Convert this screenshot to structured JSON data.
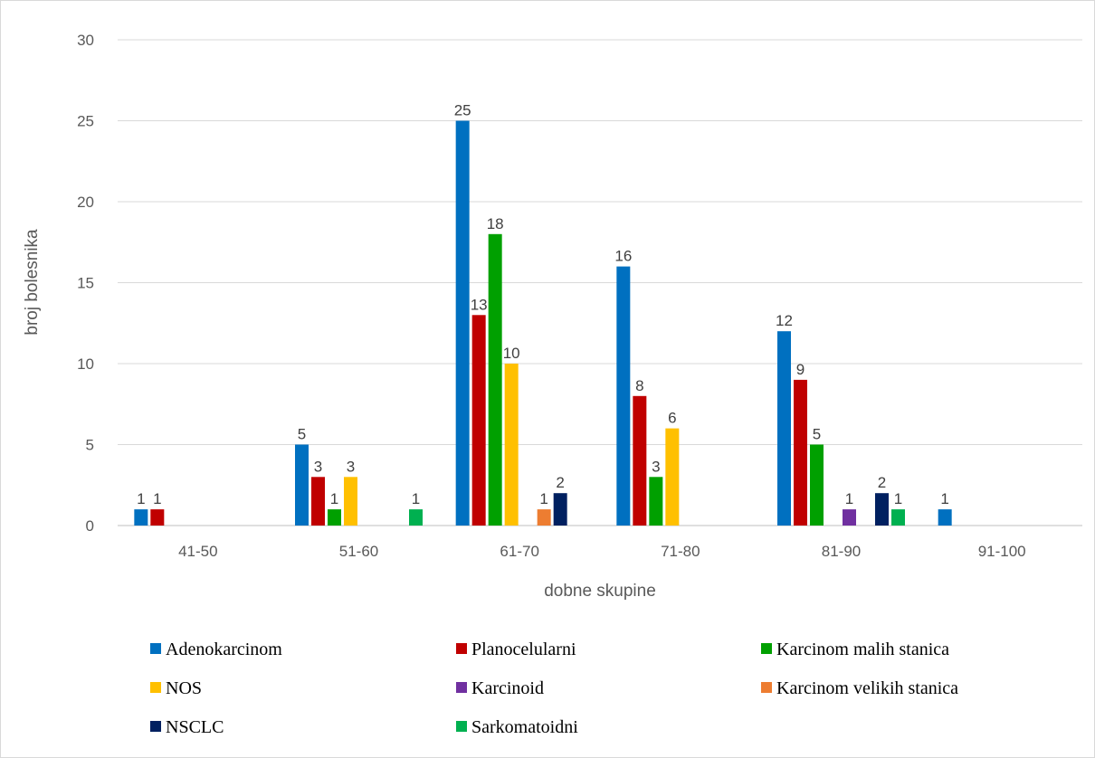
{
  "chart_data": {
    "type": "bar",
    "title": "",
    "xlabel": "dobne skupine",
    "ylabel": "broj bolesnika",
    "ylim": [
      0,
      30
    ],
    "yticks": [
      0,
      5,
      10,
      15,
      20,
      25,
      30
    ],
    "grid": true,
    "legend_position": "bottom",
    "categories": [
      "41-50",
      "51-60",
      "61-70",
      "71-80",
      "81-90",
      "91-100"
    ],
    "series": [
      {
        "name": "Adenokarcinom",
        "color": "#0070C0",
        "values": [
          1,
          5,
          25,
          16,
          12,
          1
        ]
      },
      {
        "name": "Planocelularni",
        "color": "#C00000",
        "values": [
          1,
          3,
          13,
          8,
          9,
          0
        ]
      },
      {
        "name": "Karcinom malih stanica",
        "color": "#00A000",
        "values": [
          0,
          1,
          18,
          3,
          5,
          0
        ]
      },
      {
        "name": "NOS",
        "color": "#FFC000",
        "values": [
          0,
          3,
          10,
          6,
          0,
          0
        ]
      },
      {
        "name": "Karcinoid",
        "color": "#7030A0",
        "values": [
          0,
          0,
          0,
          0,
          1,
          0
        ]
      },
      {
        "name": "Karcinom velikih stanica",
        "color": "#ED7D31",
        "values": [
          0,
          0,
          1,
          0,
          0,
          0
        ]
      },
      {
        "name": "NSCLC",
        "color": "#002060",
        "values": [
          0,
          0,
          2,
          0,
          2,
          0
        ]
      },
      {
        "name": "Sarkomatoidni",
        "color": "#00B050",
        "values": [
          0,
          1,
          0,
          0,
          1,
          0
        ]
      }
    ]
  }
}
